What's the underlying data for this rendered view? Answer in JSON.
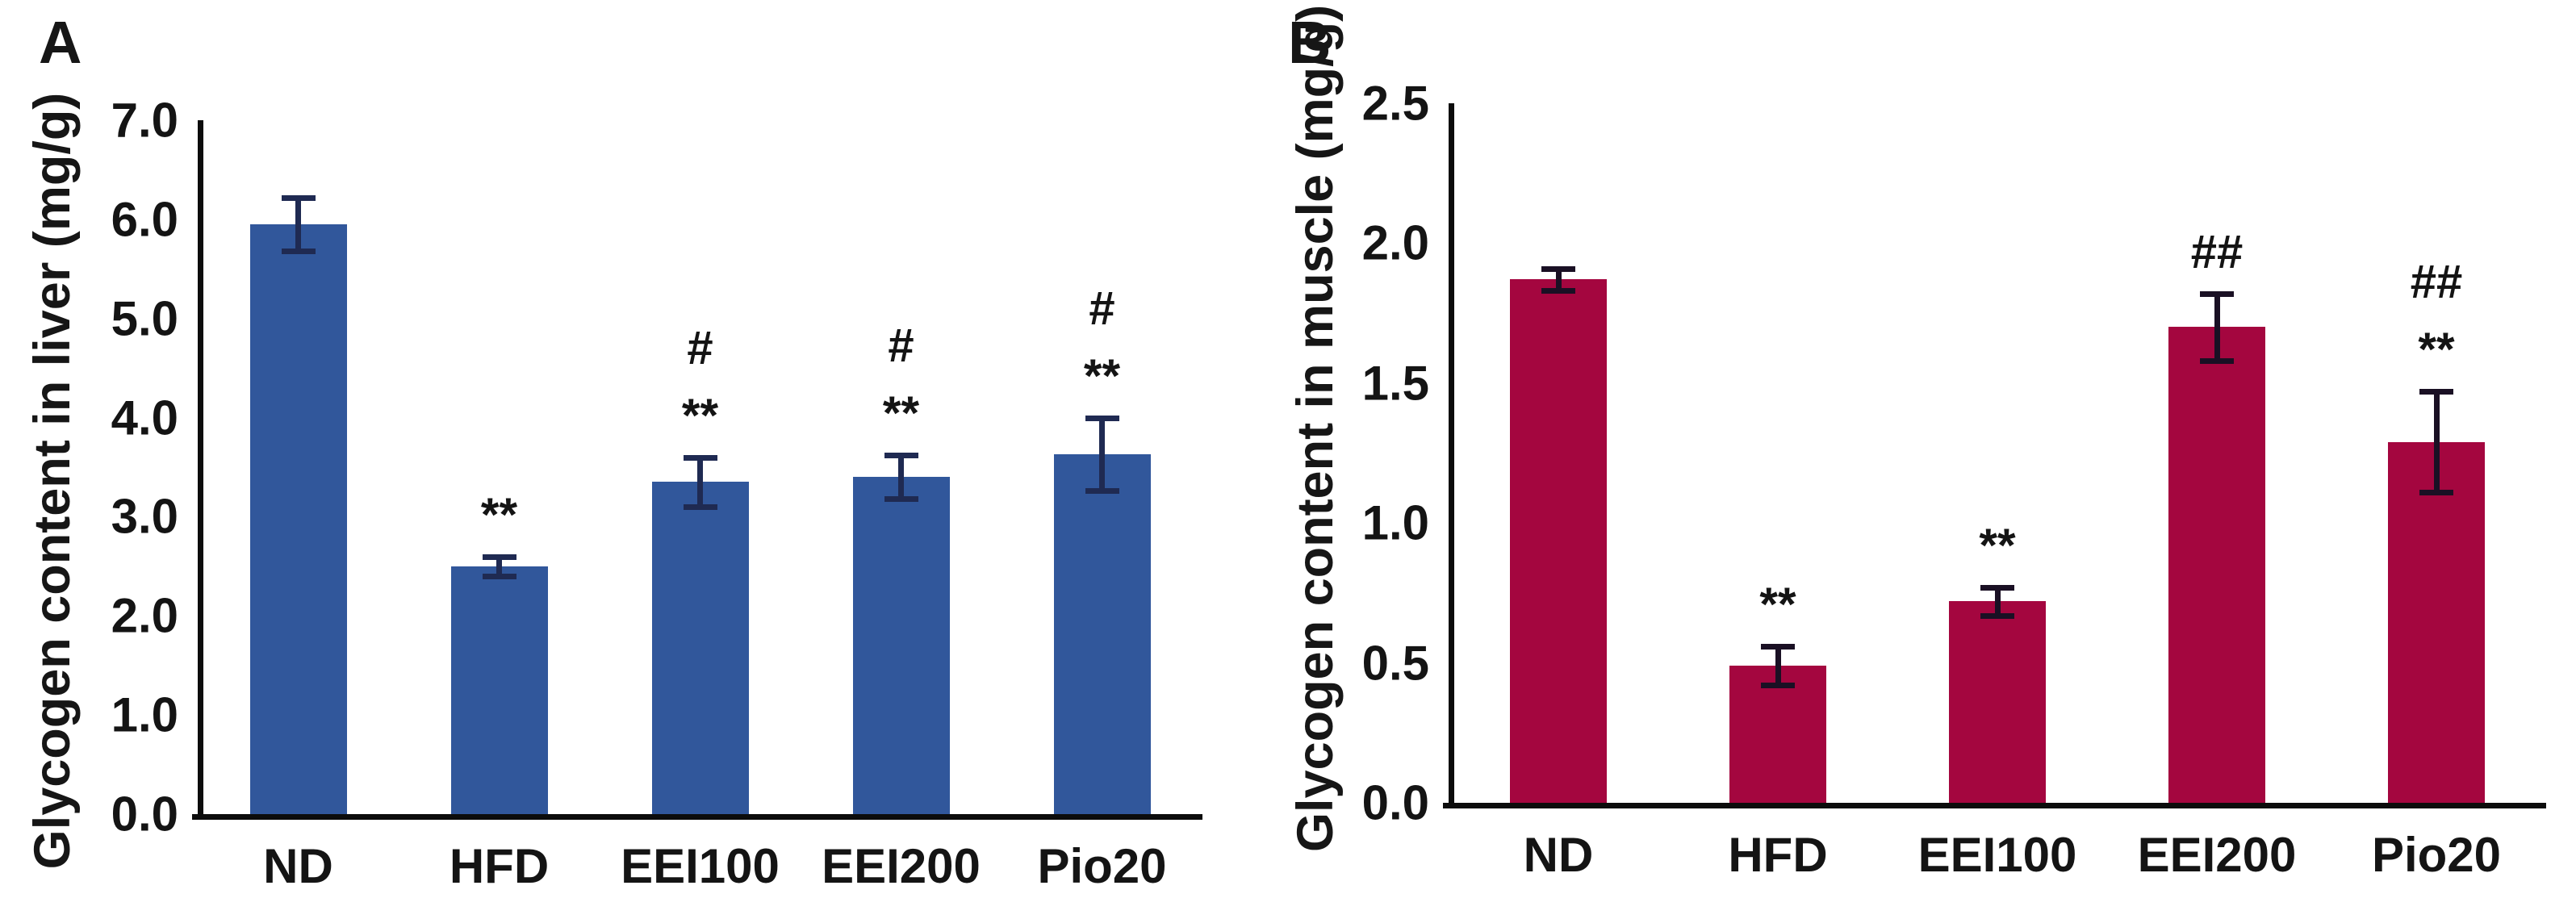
{
  "chart_data": [
    {
      "type": "bar",
      "panel_label": "A",
      "ylabel": "Glycogen content in liver (mg/g)",
      "xlabel": "",
      "categories": [
        "ND",
        "HFD",
        "EEI100",
        "EEI200",
        "Pio20"
      ],
      "values": [
        5.95,
        2.5,
        3.35,
        3.4,
        3.63
      ],
      "errors": [
        0.27,
        0.1,
        0.25,
        0.22,
        0.37
      ],
      "annotations": [
        [],
        [
          "**"
        ],
        [
          "#",
          "**"
        ],
        [
          "#",
          "**"
        ],
        [
          "#",
          "**"
        ]
      ],
      "ylim": [
        0.0,
        7.0
      ],
      "y_ticks": [
        "7.0",
        "6.0",
        "5.0",
        "4.0",
        "3.0",
        "2.0",
        "1.0",
        "0.0"
      ],
      "bar_color": "#31579B",
      "error_color": "#1F2A52",
      "grid": false,
      "legend": false
    },
    {
      "type": "bar",
      "panel_label": "B",
      "ylabel": "Glycogen content in muscle (mg/g)",
      "xlabel": "",
      "categories": [
        "ND",
        "HFD",
        "EEI100",
        "EEI200",
        "Pio20"
      ],
      "values": [
        1.87,
        0.49,
        0.72,
        1.7,
        1.29
      ],
      "errors": [
        0.04,
        0.07,
        0.05,
        0.12,
        0.18
      ],
      "annotations": [
        [],
        [
          "**"
        ],
        [
          "**"
        ],
        [
          "##"
        ],
        [
          "##",
          "**"
        ]
      ],
      "ylim": [
        0.0,
        2.5
      ],
      "y_ticks": [
        "2.5",
        "2.0",
        "1.5",
        "1.0",
        "0.5",
        "0.0"
      ],
      "bar_color": "#A4063F",
      "error_color": "#1A1024",
      "grid": false,
      "legend": false
    }
  ]
}
